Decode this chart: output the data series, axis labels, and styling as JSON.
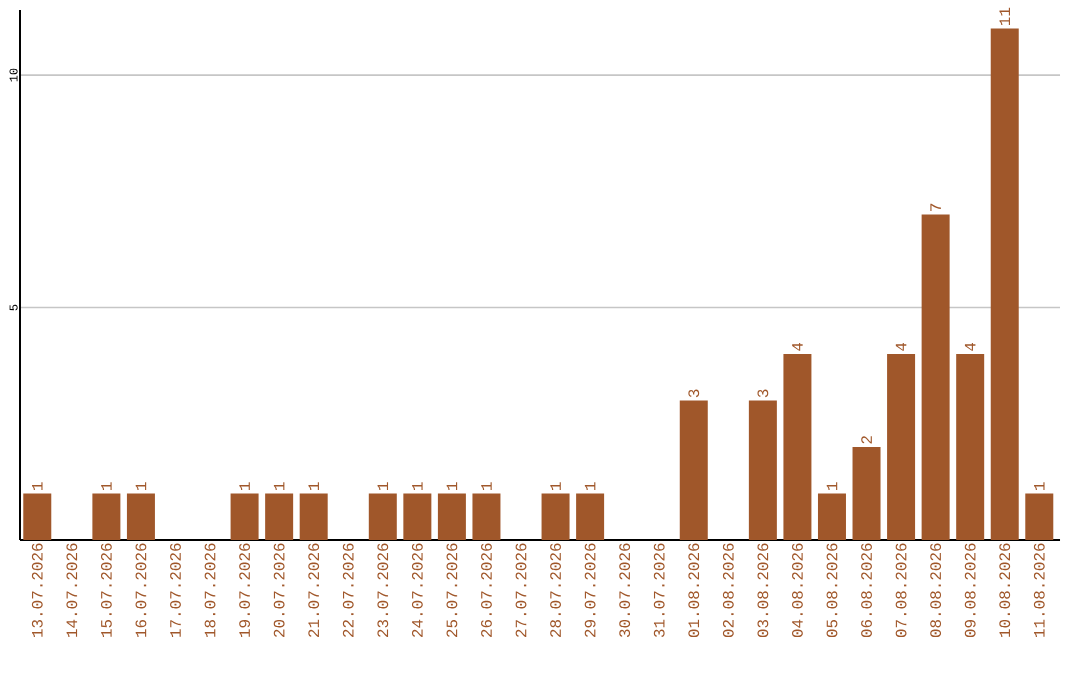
{
  "chart_data": {
    "type": "bar",
    "categories": [
      "13.07.2026",
      "14.07.2026",
      "15.07.2026",
      "16.07.2026",
      "17.07.2026",
      "18.07.2026",
      "19.07.2026",
      "20.07.2026",
      "21.07.2026",
      "22.07.2026",
      "23.07.2026",
      "24.07.2026",
      "25.07.2026",
      "26.07.2026",
      "27.07.2026",
      "28.07.2026",
      "29.07.2026",
      "30.07.2026",
      "31.07.2026",
      "01.08.2026",
      "02.08.2026",
      "03.08.2026",
      "04.08.2026",
      "05.08.2026",
      "06.08.2026",
      "07.08.2026",
      "08.08.2026",
      "09.08.2026",
      "10.08.2026",
      "11.08.2026"
    ],
    "values": [
      1,
      0,
      1,
      1,
      0,
      0,
      1,
      1,
      1,
      0,
      1,
      1,
      1,
      1,
      0,
      1,
      1,
      0,
      0,
      3,
      0,
      3,
      4,
      1,
      2,
      4,
      7,
      4,
      11,
      1
    ],
    "value_labels": [
      "1",
      null,
      "1",
      "1",
      null,
      null,
      "1",
      "1",
      "1",
      null,
      "1",
      "1",
      "1",
      "1",
      null,
      "1",
      "1",
      null,
      null,
      "3",
      null,
      "3",
      "4",
      "1",
      "2",
      "4",
      "7",
      "4",
      "11",
      "1"
    ],
    "color": "#a0572a",
    "ylim": [
      0,
      11.4
    ],
    "yticks": [
      5,
      10
    ],
    "grid": "y"
  }
}
